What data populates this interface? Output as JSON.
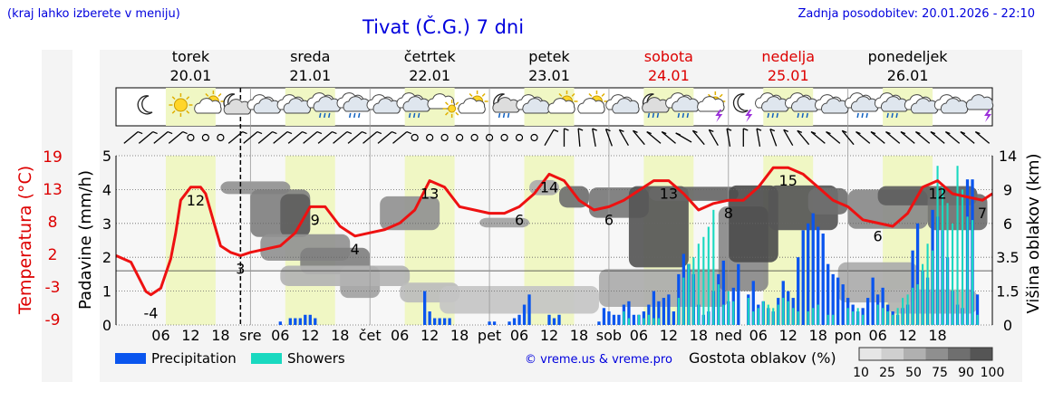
{
  "header": {
    "hint": "(kraj lahko izberete v meniju)",
    "title": "Tivat (Č.G.) 7 dni",
    "updated": "Zadnja posodobitev: 20.01.2026 - 22:10"
  },
  "colors": {
    "temperature": "#ee1111",
    "precipitation": "#0a55ee",
    "showers": "#19d9c0",
    "daylight": "#f0f7c4",
    "panel": "#f4f4f4",
    "title_blue": "#0000dd",
    "weekend_red": "#dd0000"
  },
  "days": [
    {
      "name": "torek",
      "date": "20.01",
      "weekend": false
    },
    {
      "name": "sreda",
      "date": "21.01",
      "weekend": false
    },
    {
      "name": "četrtek",
      "date": "22.01",
      "weekend": false
    },
    {
      "name": "petek",
      "date": "23.01",
      "weekend": false
    },
    {
      "name": "sobota",
      "date": "24.01",
      "weekend": true
    },
    {
      "name": "nedelja",
      "date": "25.01",
      "weekend": true
    },
    {
      "name": "ponedeljek",
      "date": "26.01",
      "weekend": false
    }
  ],
  "chart_data": {
    "type": "line",
    "title": "Tivat (Č.G.) 7 dni",
    "x_unit": "hours from 20.01 00:00",
    "x_range": [
      -3,
      173
    ],
    "now_hour": 22,
    "x_tick_labels": [
      "06",
      "12",
      "18",
      "sre",
      "06",
      "12",
      "18",
      "čet",
      "06",
      "12",
      "18",
      "pet",
      "06",
      "12",
      "18",
      "sob",
      "06",
      "12",
      "18",
      "ned",
      "06",
      "12",
      "18",
      "pon",
      "06",
      "12",
      "18"
    ],
    "x_tick_hours": [
      6,
      12,
      18,
      24,
      30,
      36,
      42,
      48,
      54,
      60,
      66,
      72,
      78,
      84,
      90,
      96,
      102,
      108,
      114,
      120,
      126,
      132,
      138,
      144,
      150,
      156,
      162
    ],
    "left_axis_precip": {
      "label": "Padavine (mm/h)",
      "range": [
        0,
        5
      ],
      "ticks": [
        0,
        1,
        2,
        3,
        4,
        5
      ]
    },
    "left_axis_temp": {
      "label": "Temperatura (°C)",
      "ticks": [
        -9,
        -3,
        2,
        8,
        13,
        19
      ]
    },
    "right_axis_cloud": {
      "label": "Višina oblakov (km)",
      "ticks": [
        0,
        1.5,
        3.5,
        6.0,
        9.0,
        14
      ]
    },
    "temperature_series": {
      "name": "Temperatura (°C)",
      "hours": [
        -3,
        0,
        3,
        4,
        6,
        8,
        9,
        10,
        12,
        14,
        15,
        18,
        20,
        22,
        24,
        27,
        30,
        33,
        36,
        39,
        42,
        45,
        48,
        51,
        54,
        57,
        60,
        63,
        66,
        69,
        72,
        75,
        78,
        81,
        84,
        87,
        90,
        93,
        96,
        99,
        102,
        105,
        108,
        111,
        114,
        117,
        120,
        123,
        126,
        129,
        132,
        135,
        138,
        141,
        144,
        147,
        150,
        153,
        156,
        159,
        162,
        165,
        168,
        171,
        173
      ],
      "values": [
        1.5,
        0.5,
        -4,
        -4.5,
        -3.5,
        1,
        5,
        10,
        12,
        12,
        11,
        3,
        2,
        1.5,
        2,
        2.5,
        3,
        5,
        9,
        9,
        6,
        4.5,
        5,
        5.5,
        6.5,
        8.5,
        13,
        12,
        9,
        8.5,
        8,
        8,
        9,
        11,
        14,
        13,
        10,
        8.5,
        9,
        10,
        11.5,
        13,
        13,
        11,
        8.5,
        9.5,
        10,
        10,
        12,
        15,
        15,
        14,
        12,
        10,
        9,
        7,
        6.5,
        6,
        8,
        12,
        13,
        11,
        10.5,
        10,
        11
      ],
      "labels": [
        {
          "hour": 4,
          "text": "-4"
        },
        {
          "hour": 13,
          "text": "12"
        },
        {
          "hour": 22,
          "text": "3"
        },
        {
          "hour": 37,
          "text": "9"
        },
        {
          "hour": 45,
          "text": "4"
        },
        {
          "hour": 60,
          "text": "13"
        },
        {
          "hour": 78,
          "text": "6"
        },
        {
          "hour": 84,
          "text": "14"
        },
        {
          "hour": 96,
          "text": "6"
        },
        {
          "hour": 108,
          "text": "13"
        },
        {
          "hour": 120,
          "text": "8"
        },
        {
          "hour": 132,
          "text": "15"
        },
        {
          "hour": 150,
          "text": "6"
        },
        {
          "hour": 162,
          "text": "12"
        },
        {
          "hour": 171,
          "text": "7"
        }
      ]
    },
    "precipitation_series": {
      "name": "Precipitation",
      "hours": [
        30,
        32,
        33,
        34,
        35,
        36,
        37,
        59,
        60,
        61,
        62,
        63,
        64,
        72,
        73,
        76,
        77,
        78,
        79,
        80,
        84,
        85,
        86,
        94,
        95,
        96,
        97,
        98,
        99,
        100,
        101,
        102,
        103,
        104,
        105,
        106,
        107,
        108,
        109,
        110,
        111,
        112,
        113,
        114,
        115,
        116,
        117,
        118,
        119,
        120,
        121,
        122,
        124,
        125,
        126,
        127,
        128,
        129,
        130,
        131,
        132,
        133,
        134,
        135,
        136,
        137,
        138,
        139,
        140,
        141,
        142,
        143,
        144,
        145,
        146,
        147,
        148,
        149,
        150,
        151,
        152,
        153,
        154,
        155,
        156,
        157,
        158,
        159,
        160,
        161,
        162,
        163,
        164,
        165,
        166,
        167,
        168,
        169,
        170
      ],
      "values": [
        0.1,
        0.2,
        0.2,
        0.2,
        0.3,
        0.3,
        0.2,
        1.0,
        0.4,
        0.2,
        0.2,
        0.2,
        0.2,
        0.1,
        0.1,
        0.1,
        0.2,
        0.3,
        0.6,
        0.9,
        0.3,
        0.2,
        0.3,
        0.1,
        0.5,
        0.4,
        0.3,
        0.3,
        0.6,
        0.7,
        0.3,
        0.3,
        0.4,
        0.6,
        1.0,
        0.7,
        0.8,
        0.9,
        0.4,
        1.5,
        2.1,
        1.8,
        1.5,
        0.6,
        0.3,
        0.4,
        1.0,
        1.5,
        1.9,
        0.7,
        1.1,
        1.8,
        0.9,
        1.3,
        0.6,
        0.7,
        0.5,
        0.4,
        0.8,
        1.3,
        1.0,
        0.8,
        2.0,
        2.8,
        3.0,
        3.3,
        2.9,
        2.7,
        1.8,
        1.5,
        1.4,
        1.2,
        0.8,
        0.6,
        0.4,
        0.5,
        0.8,
        1.4,
        0.9,
        1.1,
        0.6,
        0.4,
        0.3,
        0.5,
        0.6,
        2.2,
        3.0,
        1.6,
        1.4,
        3.4,
        3.2,
        2.8,
        2.0,
        1.0,
        0.6,
        0.5,
        4.3,
        4.3,
        0.9
      ]
    },
    "showers_series": {
      "name": "Showers",
      "hours": [
        99,
        100,
        102,
        103,
        104,
        105,
        106,
        110,
        111,
        112,
        113,
        114,
        115,
        116,
        117,
        118,
        119,
        120,
        121,
        124,
        125,
        126,
        127,
        128,
        129,
        130,
        131,
        132,
        133,
        134,
        136,
        137,
        138,
        140,
        141,
        144,
        145,
        146,
        147,
        150,
        151,
        152,
        153,
        154,
        155,
        156,
        157,
        158,
        159,
        160,
        161,
        162,
        163,
        164,
        165,
        166,
        167,
        168,
        169,
        170
      ],
      "values": [
        0.4,
        0.2,
        0.3,
        0.2,
        0.3,
        0.2,
        0.2,
        0.8,
        1.4,
        1.8,
        2.0,
        2.4,
        2.6,
        2.9,
        3.4,
        1.2,
        0.6,
        1.0,
        0.7,
        0.8,
        0.4,
        0.5,
        0.7,
        0.6,
        0.5,
        0.6,
        0.8,
        0.7,
        0.5,
        0.4,
        0.4,
        0.5,
        0.6,
        0.3,
        0.3,
        0.5,
        0.4,
        0.5,
        0.3,
        0.6,
        0.5,
        0.4,
        0.3,
        0.5,
        0.8,
        0.9,
        1.1,
        1.2,
        1.8,
        2.4,
        2.2,
        4.7,
        4.1,
        3.6,
        3.0,
        4.7,
        4.0,
        3.2,
        3.1,
        0.3
      ]
    },
    "legend": [
      "Precipitation",
      "Showers"
    ],
    "cloud_density_legend": {
      "label": "Gostota oblakov (%)",
      "steps": [
        "10",
        "25",
        "50",
        "75",
        "90",
        "100"
      ]
    },
    "credit": "© vreme.us & vreme.pro"
  },
  "weather_icons": [
    {
      "hour": 3,
      "icon": "moon"
    },
    {
      "hour": 10,
      "icon": "sun"
    },
    {
      "hour": 16,
      "icon": "sun-cloud"
    },
    {
      "hour": 21,
      "icon": "moon-cloud"
    },
    {
      "hour": 27,
      "icon": "cloud"
    },
    {
      "hour": 33,
      "icon": "cloud"
    },
    {
      "hour": 39,
      "icon": "cloud-rain"
    },
    {
      "hour": 45,
      "icon": "cloud-rain"
    },
    {
      "hour": 51,
      "icon": "cloud"
    },
    {
      "hour": 57,
      "icon": "cloud-rain"
    },
    {
      "hour": 63,
      "icon": "cloud-sun"
    },
    {
      "hour": 69,
      "icon": "sun-cloud"
    },
    {
      "hour": 75,
      "icon": "moon-rain"
    },
    {
      "hour": 81,
      "icon": "cloud"
    },
    {
      "hour": 87,
      "icon": "sun-cloud"
    },
    {
      "hour": 93,
      "icon": "sun-cloud"
    },
    {
      "hour": 99,
      "icon": "cloud"
    },
    {
      "hour": 105,
      "icon": "moon-rain"
    },
    {
      "hour": 111,
      "icon": "cloud-rain"
    },
    {
      "hour": 117,
      "icon": "sun-storm"
    },
    {
      "hour": 123,
      "icon": "moon-storm"
    },
    {
      "hour": 129,
      "icon": "cloud-rain"
    },
    {
      "hour": 135,
      "icon": "cloud-rain"
    },
    {
      "hour": 141,
      "icon": "cloud"
    },
    {
      "hour": 147,
      "icon": "cloud-rain"
    },
    {
      "hour": 153,
      "icon": "cloud-rain"
    },
    {
      "hour": 159,
      "icon": "cloud"
    },
    {
      "hour": 165,
      "icon": "cloud"
    },
    {
      "hour": 171,
      "icon": "cloud-storm"
    }
  ],
  "wind": [
    {
      "hour": 0,
      "type": "barb",
      "angle": 40
    },
    {
      "hour": 3,
      "type": "barb",
      "angle": 40
    },
    {
      "hour": 6,
      "type": "barb",
      "angle": 40
    },
    {
      "hour": 9,
      "type": "barb",
      "angle": 40
    },
    {
      "hour": 12,
      "type": "calm"
    },
    {
      "hour": 15,
      "type": "calm"
    },
    {
      "hour": 18,
      "type": "calm"
    },
    {
      "hour": 21,
      "type": "barb",
      "angle": 40
    },
    {
      "hour": 24,
      "type": "barb",
      "angle": 40
    },
    {
      "hour": 27,
      "type": "barb",
      "angle": 40
    },
    {
      "hour": 30,
      "type": "barb",
      "angle": 40
    },
    {
      "hour": 33,
      "type": "barb",
      "angle": 40
    },
    {
      "hour": 36,
      "type": "barb",
      "angle": 40
    },
    {
      "hour": 39,
      "type": "barb",
      "angle": 40
    },
    {
      "hour": 42,
      "type": "barb",
      "angle": 40
    },
    {
      "hour": 45,
      "type": "barb",
      "angle": 40
    },
    {
      "hour": 48,
      "type": "barb",
      "angle": 40
    },
    {
      "hour": 51,
      "type": "barb",
      "angle": 40
    },
    {
      "hour": 54,
      "type": "barb",
      "angle": 40
    },
    {
      "hour": 57,
      "type": "calm"
    },
    {
      "hour": 60,
      "type": "calm"
    },
    {
      "hour": 63,
      "type": "calm"
    },
    {
      "hour": 66,
      "type": "calm"
    },
    {
      "hour": 69,
      "type": "calm"
    },
    {
      "hour": 72,
      "type": "calm"
    },
    {
      "hour": 75,
      "type": "calm"
    },
    {
      "hour": 78,
      "type": "calm"
    },
    {
      "hour": 81,
      "type": "calm"
    },
    {
      "hour": 84,
      "type": "barb",
      "angle": 60
    },
    {
      "hour": 87,
      "type": "barb",
      "angle": 90
    },
    {
      "hour": 90,
      "type": "barb",
      "angle": 95
    },
    {
      "hour": 93,
      "type": "barb",
      "angle": 100
    },
    {
      "hour": 96,
      "type": "barb",
      "angle": 110
    },
    {
      "hour": 99,
      "type": "barb",
      "angle": 120
    },
    {
      "hour": 102,
      "type": "barb",
      "angle": 130
    },
    {
      "hour": 105,
      "type": "barb",
      "angle": 140
    },
    {
      "hour": 108,
      "type": "barb",
      "angle": 140
    },
    {
      "hour": 111,
      "type": "barb",
      "angle": 150
    },
    {
      "hour": 114,
      "type": "barb",
      "angle": 130
    },
    {
      "hour": 117,
      "type": "barb",
      "angle": 120
    },
    {
      "hour": 120,
      "type": "barb",
      "angle": 100
    },
    {
      "hour": 123,
      "type": "barb",
      "angle": 90
    },
    {
      "hour": 126,
      "type": "barb",
      "angle": 100
    },
    {
      "hour": 129,
      "type": "barb",
      "angle": 110
    },
    {
      "hour": 132,
      "type": "barb",
      "angle": 120
    },
    {
      "hour": 135,
      "type": "barb",
      "angle": 130
    },
    {
      "hour": 138,
      "type": "barb",
      "angle": 140
    },
    {
      "hour": 141,
      "type": "barb",
      "angle": 140
    },
    {
      "hour": 144,
      "type": "barb",
      "angle": 130
    },
    {
      "hour": 147,
      "type": "barb",
      "angle": 140
    },
    {
      "hour": 150,
      "type": "barb",
      "angle": 140
    },
    {
      "hour": 153,
      "type": "barb",
      "angle": 140
    },
    {
      "hour": 156,
      "type": "barb",
      "angle": 140
    },
    {
      "hour": 159,
      "type": "barb",
      "angle": 140
    },
    {
      "hour": 162,
      "type": "barb",
      "angle": 140
    },
    {
      "hour": 165,
      "type": "barb",
      "angle": 140
    },
    {
      "hour": 168,
      "type": "barb",
      "angle": 140
    },
    {
      "hour": 171,
      "type": "barb",
      "angle": 140
    }
  ],
  "clouds": [
    {
      "h0": 18,
      "h1": 32,
      "km0": 8.6,
      "km1": 10.2,
      "d": 50
    },
    {
      "h0": 24,
      "h1": 36,
      "km0": 5.0,
      "km1": 9.0,
      "d": 60
    },
    {
      "h0": 30,
      "h1": 36,
      "km0": 5.0,
      "km1": 8.6,
      "d": 80
    },
    {
      "h0": 26,
      "h1": 44,
      "km0": 3.3,
      "km1": 5.2,
      "d": 50
    },
    {
      "h0": 34,
      "h1": 48,
      "km0": 2.5,
      "km1": 4.2,
      "d": 60
    },
    {
      "h0": 42,
      "h1": 50,
      "km0": 1.2,
      "km1": 3.0,
      "d": 40
    },
    {
      "h0": 30,
      "h1": 56,
      "km0": 1.8,
      "km1": 3.0,
      "d": 30
    },
    {
      "h0": 50,
      "h1": 62,
      "km0": 5.5,
      "km1": 8.4,
      "d": 50
    },
    {
      "h0": 54,
      "h1": 66,
      "km0": 1.0,
      "km1": 2.0,
      "d": 25
    },
    {
      "h0": 70,
      "h1": 80,
      "km0": 5.7,
      "km1": 6.5,
      "d": 40
    },
    {
      "h0": 80,
      "h1": 86,
      "km0": 8.5,
      "km1": 10.4,
      "d": 35
    },
    {
      "h0": 86,
      "h1": 92,
      "km0": 7.4,
      "km1": 9.5,
      "d": 70
    },
    {
      "h0": 62,
      "h1": 94,
      "km0": 0.5,
      "km1": 1.8,
      "d": 20
    },
    {
      "h0": 92,
      "h1": 104,
      "km0": 6.5,
      "km1": 9.3,
      "d": 65
    },
    {
      "h0": 100,
      "h1": 112,
      "km0": 2.9,
      "km1": 9.5,
      "d": 85
    },
    {
      "h0": 104,
      "h1": 122,
      "km0": 8.0,
      "km1": 9.4,
      "d": 75
    },
    {
      "h0": 94,
      "h1": 120,
      "km0": 0.8,
      "km1": 2.8,
      "d": 35
    },
    {
      "h0": 118,
      "h1": 128,
      "km0": 1.5,
      "km1": 7.5,
      "d": 55
    },
    {
      "h0": 120,
      "h1": 130,
      "km0": 3.2,
      "km1": 9.6,
      "d": 90
    },
    {
      "h0": 128,
      "h1": 142,
      "km0": 5.5,
      "km1": 9.6,
      "d": 85
    },
    {
      "h0": 136,
      "h1": 144,
      "km0": 6.8,
      "km1": 9.2,
      "d": 70
    },
    {
      "h0": 142,
      "h1": 158,
      "km0": 1.0,
      "km1": 3.2,
      "d": 35
    },
    {
      "h0": 144,
      "h1": 160,
      "km0": 5.6,
      "km1": 9.0,
      "d": 55
    },
    {
      "h0": 150,
      "h1": 170,
      "km0": 7.6,
      "km1": 9.5,
      "d": 80
    },
    {
      "h0": 160,
      "h1": 172,
      "km0": 5.5,
      "km1": 8.6,
      "d": 70
    },
    {
      "h0": 152,
      "h1": 170,
      "km0": 0.5,
      "km1": 1.6,
      "d": 30
    }
  ]
}
